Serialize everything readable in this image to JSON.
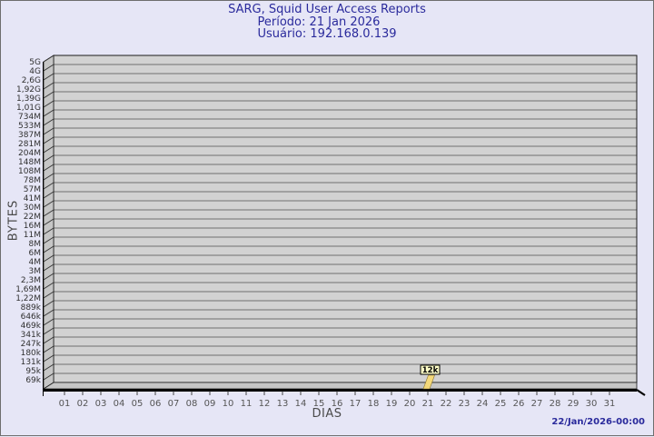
{
  "chart_data": {
    "type": "bar",
    "title": "SARG, Squid User Access Reports",
    "subtitle_period": "Período: 21 Jan 2026",
    "subtitle_user": "Usuário: 192.168.0.139",
    "xlabel": "DIAS",
    "ylabel": "BYTES",
    "categories": [
      "01",
      "02",
      "03",
      "04",
      "05",
      "06",
      "07",
      "08",
      "09",
      "10",
      "11",
      "12",
      "13",
      "14",
      "15",
      "16",
      "17",
      "18",
      "19",
      "20",
      "21",
      "22",
      "23",
      "24",
      "25",
      "26",
      "27",
      "28",
      "29",
      "30",
      "31"
    ],
    "values": [
      null,
      null,
      null,
      null,
      null,
      null,
      null,
      null,
      null,
      null,
      null,
      null,
      null,
      null,
      null,
      null,
      null,
      null,
      null,
      null,
      12000,
      null,
      null,
      null,
      null,
      null,
      null,
      null,
      null,
      null,
      null
    ],
    "annotation": {
      "category": "21",
      "label": "12k"
    },
    "y_tick_labels": [
      "5G",
      "4G",
      "2,6G",
      "1,92G",
      "1,39G",
      "1,01G",
      "734M",
      "533M",
      "387M",
      "281M",
      "204M",
      "148M",
      "108M",
      "78M",
      "57M",
      "41M",
      "30M",
      "22M",
      "16M",
      "11M",
      "8M",
      "6M",
      "4M",
      "3M",
      "2,3M",
      "1,69M",
      "1,22M",
      "889k",
      "646k",
      "469k",
      "341k",
      "247k",
      "180k",
      "131k",
      "95k",
      "69k"
    ],
    "ylim": [
      "69k",
      "5G"
    ],
    "yscale": "log-like",
    "grid": "horizontal",
    "legend_position": "none",
    "colors": {
      "title_text": "#2a2a9c",
      "bar": "#f4d97a",
      "annotation_bg": "#ffffc8",
      "wall": "#d2d2d2",
      "side_wall": "#c6c6c6",
      "grid_line": "#707070",
      "background": "#e6e6f6"
    }
  },
  "footer": {
    "timestamp": "22/Jan/2026-00:00"
  }
}
